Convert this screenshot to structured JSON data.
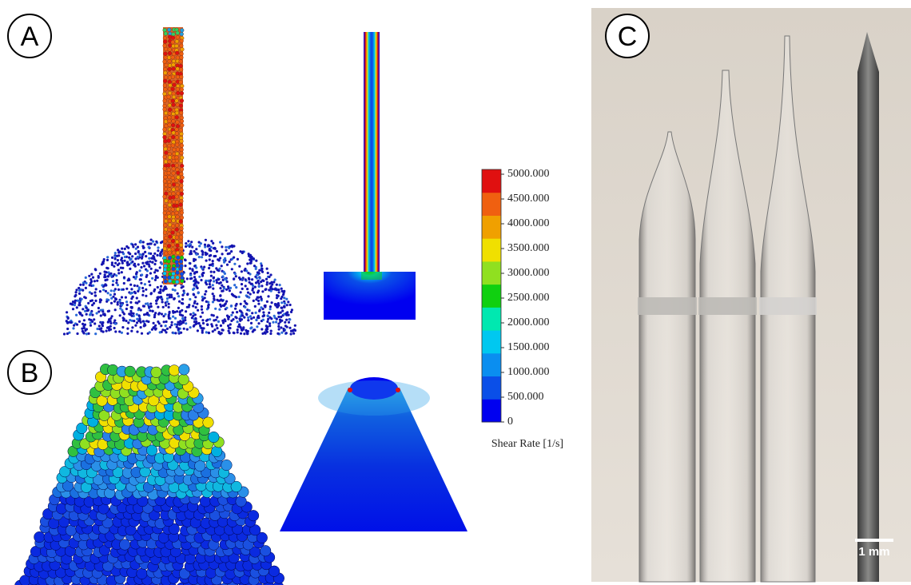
{
  "panels": {
    "a": {
      "label": "A"
    },
    "b": {
      "label": "B"
    },
    "c": {
      "label": "C",
      "scale_bar": "1 mm"
    }
  },
  "colorbar": {
    "title": "Shear Rate [1/s]",
    "range": [
      0,
      5000
    ],
    "ticks": [
      {
        "value": 5000,
        "label": "5000.000"
      },
      {
        "value": 4500,
        "label": "4500.000"
      },
      {
        "value": 4000,
        "label": "4000.000"
      },
      {
        "value": 3500,
        "label": "3500.000"
      },
      {
        "value": 3000,
        "label": "3000.000"
      },
      {
        "value": 2500,
        "label": "2500.000"
      },
      {
        "value": 2000,
        "label": "2000.000"
      },
      {
        "value": 1500,
        "label": "1500.000"
      },
      {
        "value": 1000,
        "label": "1000.000"
      },
      {
        "value": 500,
        "label": "500.000"
      },
      0
    ],
    "colors": [
      "#0000f0",
      "#0a4fe8",
      "#0a8ef0",
      "#00c8f0",
      "#00e8b0",
      "#10d010",
      "#90e020",
      "#f0e000",
      "#f0a000",
      "#f06010",
      "#e01010"
    ]
  }
}
